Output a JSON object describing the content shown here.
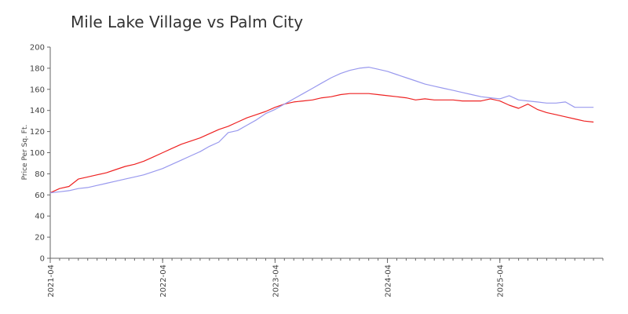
{
  "chart_data": {
    "type": "line",
    "title": "Mile Lake Village vs Palm City",
    "xlabel": "",
    "ylabel": "Price Per Sq. Ft.",
    "ylim": [
      0,
      200
    ],
    "yticks": [
      0,
      20,
      40,
      60,
      80,
      100,
      120,
      140,
      160,
      180,
      200
    ],
    "xticks": [
      "2021-04",
      "2022-04",
      "2023-04",
      "2024-04",
      "2025-04"
    ],
    "x_start": "2021-04",
    "x_end": "2026-03",
    "grid": false,
    "legend": "none",
    "series": [
      {
        "color": "#ee2222",
        "points": [
          [
            "2021-04",
            62
          ],
          [
            "2021-05",
            66
          ],
          [
            "2021-06",
            68
          ],
          [
            "2021-07",
            75
          ],
          [
            "2021-08",
            77
          ],
          [
            "2021-09",
            79
          ],
          [
            "2021-10",
            81
          ],
          [
            "2021-11",
            84
          ],
          [
            "2021-12",
            87
          ],
          [
            "2022-01",
            89
          ],
          [
            "2022-02",
            92
          ],
          [
            "2022-03",
            96
          ],
          [
            "2022-04",
            100
          ],
          [
            "2022-05",
            104
          ],
          [
            "2022-06",
            108
          ],
          [
            "2022-07",
            111
          ],
          [
            "2022-08",
            114
          ],
          [
            "2022-09",
            118
          ],
          [
            "2022-10",
            122
          ],
          [
            "2022-11",
            125
          ],
          [
            "2022-12",
            129
          ],
          [
            "2023-01",
            133
          ],
          [
            "2023-02",
            136
          ],
          [
            "2023-03",
            139
          ],
          [
            "2023-04",
            143
          ],
          [
            "2023-05",
            146
          ],
          [
            "2023-06",
            148
          ],
          [
            "2023-07",
            149
          ],
          [
            "2023-08",
            150
          ],
          [
            "2023-09",
            152
          ],
          [
            "2023-10",
            153
          ],
          [
            "2023-11",
            155
          ],
          [
            "2023-12",
            156
          ],
          [
            "2024-01",
            156
          ],
          [
            "2024-02",
            156
          ],
          [
            "2024-03",
            155
          ],
          [
            "2024-04",
            154
          ],
          [
            "2024-05",
            153
          ],
          [
            "2024-06",
            152
          ],
          [
            "2024-07",
            150
          ],
          [
            "2024-08",
            151
          ],
          [
            "2024-09",
            150
          ],
          [
            "2024-10",
            150
          ],
          [
            "2024-11",
            150
          ],
          [
            "2024-12",
            149
          ],
          [
            "2025-01",
            149
          ],
          [
            "2025-02",
            149
          ],
          [
            "2025-03",
            151
          ],
          [
            "2025-04",
            149
          ],
          [
            "2025-05",
            145
          ],
          [
            "2025-06",
            142
          ],
          [
            "2025-07",
            146
          ],
          [
            "2025-08",
            141
          ],
          [
            "2025-09",
            138
          ],
          [
            "2025-10",
            136
          ],
          [
            "2025-11",
            134
          ],
          [
            "2025-12",
            132
          ],
          [
            "2026-01",
            130
          ],
          [
            "2026-02",
            129
          ]
        ]
      },
      {
        "color": "#9999ee",
        "points": [
          [
            "2021-04",
            62
          ],
          [
            "2021-05",
            63
          ],
          [
            "2021-06",
            64
          ],
          [
            "2021-07",
            66
          ],
          [
            "2021-08",
            67
          ],
          [
            "2021-09",
            69
          ],
          [
            "2021-10",
            71
          ],
          [
            "2021-11",
            73
          ],
          [
            "2021-12",
            75
          ],
          [
            "2022-01",
            77
          ],
          [
            "2022-02",
            79
          ],
          [
            "2022-03",
            82
          ],
          [
            "2022-04",
            85
          ],
          [
            "2022-05",
            89
          ],
          [
            "2022-06",
            93
          ],
          [
            "2022-07",
            97
          ],
          [
            "2022-08",
            101
          ],
          [
            "2022-09",
            106
          ],
          [
            "2022-10",
            110
          ],
          [
            "2022-11",
            119
          ],
          [
            "2022-12",
            121
          ],
          [
            "2023-01",
            126
          ],
          [
            "2023-02",
            131
          ],
          [
            "2023-03",
            137
          ],
          [
            "2023-04",
            141
          ],
          [
            "2023-05",
            146
          ],
          [
            "2023-06",
            151
          ],
          [
            "2023-07",
            156
          ],
          [
            "2023-08",
            161
          ],
          [
            "2023-09",
            166
          ],
          [
            "2023-10",
            171
          ],
          [
            "2023-11",
            175
          ],
          [
            "2023-12",
            178
          ],
          [
            "2024-01",
            180
          ],
          [
            "2024-02",
            181
          ],
          [
            "2024-03",
            179
          ],
          [
            "2024-04",
            177
          ],
          [
            "2024-05",
            174
          ],
          [
            "2024-06",
            171
          ],
          [
            "2024-07",
            168
          ],
          [
            "2024-08",
            165
          ],
          [
            "2024-09",
            163
          ],
          [
            "2024-10",
            161
          ],
          [
            "2024-11",
            159
          ],
          [
            "2024-12",
            157
          ],
          [
            "2025-01",
            155
          ],
          [
            "2025-02",
            153
          ],
          [
            "2025-03",
            152
          ],
          [
            "2025-04",
            151
          ],
          [
            "2025-05",
            154
          ],
          [
            "2025-06",
            150
          ],
          [
            "2025-07",
            149
          ],
          [
            "2025-08",
            148
          ],
          [
            "2025-09",
            147
          ],
          [
            "2025-10",
            147
          ],
          [
            "2025-11",
            148
          ],
          [
            "2025-12",
            143
          ],
          [
            "2026-01",
            143
          ],
          [
            "2026-02",
            143
          ]
        ]
      }
    ]
  }
}
